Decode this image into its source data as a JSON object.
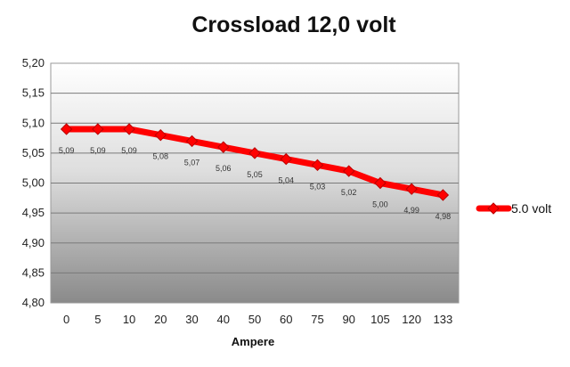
{
  "chart_data": {
    "type": "line",
    "title": "Crossload 12,0 volt",
    "xlabel": "Ampere",
    "ylabel": "",
    "categories": [
      "0",
      "5",
      "10",
      "20",
      "30",
      "40",
      "50",
      "60",
      "75",
      "90",
      "105",
      "120",
      "133"
    ],
    "series": [
      {
        "name": "5.0 volt",
        "values": [
          5.09,
          5.09,
          5.09,
          5.08,
          5.07,
          5.06,
          5.05,
          5.04,
          5.03,
          5.02,
          5.0,
          4.99,
          4.98
        ],
        "labels": [
          "5,09",
          "5,09",
          "5,09",
          "5,08",
          "5,07",
          "5,06",
          "5,05",
          "5,04",
          "5,03",
          "5,02",
          "5,00",
          "4,99",
          "4,98"
        ],
        "color": "#ff0000"
      }
    ],
    "ylim": [
      4.8,
      5.2
    ],
    "yticks": [
      "4,80",
      "4,85",
      "4,90",
      "4,95",
      "5,00",
      "5,05",
      "5,10",
      "5,15",
      "5,20"
    ],
    "grid": true,
    "legend": "right",
    "plot_background": "gradient-white-to-gray"
  }
}
